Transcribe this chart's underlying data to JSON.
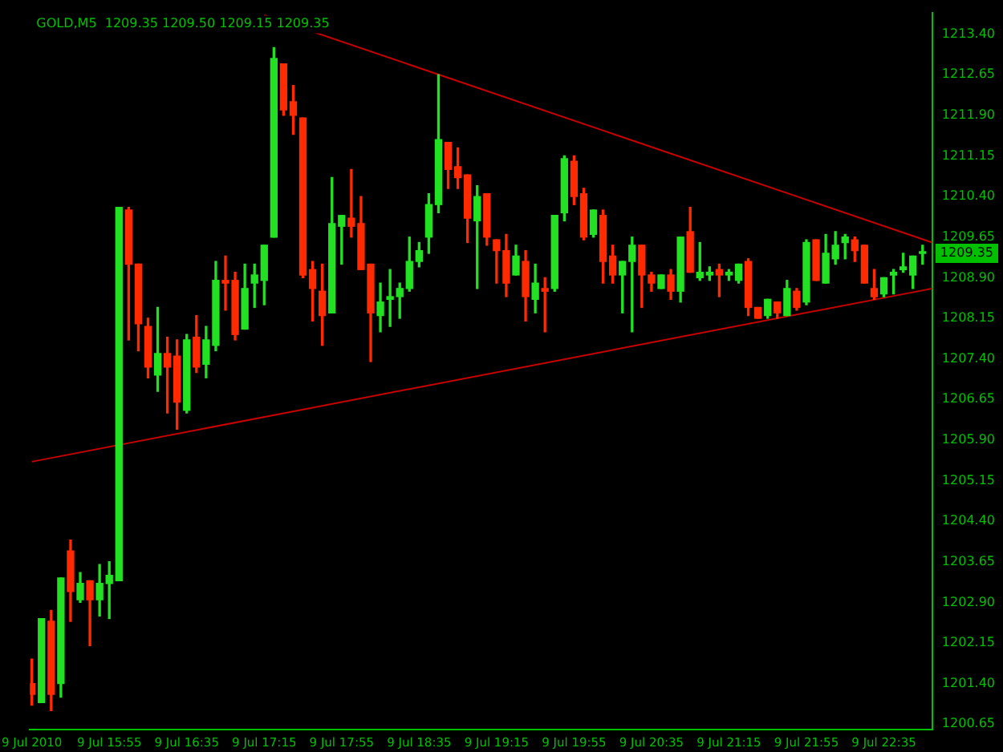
{
  "chart_data": {
    "type": "candlestick",
    "title": "GOLD,M5  1209.35 1209.50 1209.15 1209.35",
    "x": [
      "2010-07-09T15:15",
      "2010-07-09T15:20",
      "2010-07-09T15:25",
      "2010-07-09T15:30",
      "2010-07-09T15:35",
      "2010-07-09T15:40",
      "2010-07-09T15:45",
      "2010-07-09T15:50",
      "2010-07-09T15:55",
      "2010-07-09T16:00",
      "2010-07-09T16:05",
      "2010-07-09T16:10",
      "2010-07-09T16:15",
      "2010-07-09T16:20",
      "2010-07-09T16:25",
      "2010-07-09T16:30",
      "2010-07-09T16:35",
      "2010-07-09T16:40",
      "2010-07-09T16:45",
      "2010-07-09T16:50",
      "2010-07-09T16:55",
      "2010-07-09T17:00",
      "2010-07-09T17:05",
      "2010-07-09T17:10",
      "2010-07-09T17:15",
      "2010-07-09T17:20",
      "2010-07-09T17:25",
      "2010-07-09T17:30",
      "2010-07-09T17:35",
      "2010-07-09T17:40",
      "2010-07-09T17:45",
      "2010-07-09T17:50",
      "2010-07-09T17:55",
      "2010-07-09T18:00",
      "2010-07-09T18:05",
      "2010-07-09T18:10",
      "2010-07-09T18:15",
      "2010-07-09T18:20",
      "2010-07-09T18:25",
      "2010-07-09T18:30",
      "2010-07-09T18:35",
      "2010-07-09T18:40",
      "2010-07-09T18:45",
      "2010-07-09T18:50",
      "2010-07-09T18:55",
      "2010-07-09T19:00",
      "2010-07-09T19:05",
      "2010-07-09T19:10",
      "2010-07-09T19:15",
      "2010-07-09T19:20",
      "2010-07-09T19:25",
      "2010-07-09T19:30",
      "2010-07-09T19:35",
      "2010-07-09T19:40",
      "2010-07-09T19:45",
      "2010-07-09T19:50",
      "2010-07-09T19:55",
      "2010-07-09T20:00",
      "2010-07-09T20:05",
      "2010-07-09T20:10",
      "2010-07-09T20:15",
      "2010-07-09T20:20",
      "2010-07-09T20:25",
      "2010-07-09T20:30",
      "2010-07-09T20:35",
      "2010-07-09T20:40",
      "2010-07-09T20:45",
      "2010-07-09T20:50",
      "2010-07-09T20:55",
      "2010-07-09T21:00",
      "2010-07-09T21:05",
      "2010-07-09T21:10",
      "2010-07-09T21:15",
      "2010-07-09T21:20",
      "2010-07-09T21:25",
      "2010-07-09T21:30",
      "2010-07-09T21:35",
      "2010-07-09T21:40",
      "2010-07-09T21:45",
      "2010-07-09T21:50",
      "2010-07-09T21:55",
      "2010-07-09T22:00",
      "2010-07-09T22:05",
      "2010-07-09T22:10",
      "2010-07-09T22:15",
      "2010-07-09T22:20",
      "2010-07-09T22:25",
      "2010-07-09T22:30",
      "2010-07-09T22:35",
      "2010-07-09T22:40",
      "2010-07-09T22:45",
      "2010-07-09T22:50",
      "2010-07-09T22:55"
    ],
    "ohlc": [
      [
        1201.4,
        1201.85,
        1201.0,
        1201.2
      ],
      [
        1201.05,
        1202.6,
        1201.05,
        1202.6
      ],
      [
        1202.55,
        1202.75,
        1200.9,
        1201.2
      ],
      [
        1201.4,
        1203.35,
        1201.15,
        1203.35
      ],
      [
        1203.85,
        1204.05,
        1202.55,
        1203.1
      ],
      [
        1202.95,
        1203.45,
        1202.9,
        1203.25
      ],
      [
        1203.3,
        1203.3,
        1202.1,
        1202.95
      ],
      [
        1202.95,
        1203.6,
        1202.65,
        1203.25
      ],
      [
        1203.25,
        1203.65,
        1202.6,
        1203.4
      ],
      [
        1203.3,
        1210.2,
        1203.3,
        1210.2
      ],
      [
        1210.15,
        1210.2,
        1207.75,
        1209.15
      ],
      [
        1209.15,
        1209.15,
        1207.55,
        1208.05
      ],
      [
        1208.0,
        1208.15,
        1207.05,
        1207.25
      ],
      [
        1207.1,
        1208.35,
        1206.8,
        1207.5
      ],
      [
        1207.5,
        1207.8,
        1206.4,
        1207.25
      ],
      [
        1207.45,
        1207.75,
        1206.1,
        1206.6
      ],
      [
        1206.45,
        1207.85,
        1206.4,
        1207.75
      ],
      [
        1207.8,
        1208.2,
        1207.15,
        1207.25
      ],
      [
        1207.3,
        1208.0,
        1207.05,
        1207.75
      ],
      [
        1207.65,
        1209.2,
        1207.55,
        1208.85
      ],
      [
        1208.85,
        1209.3,
        1208.3,
        1208.8
      ],
      [
        1208.85,
        1209.0,
        1207.75,
        1207.85
      ],
      [
        1207.95,
        1209.15,
        1207.95,
        1208.7
      ],
      [
        1208.8,
        1209.15,
        1208.35,
        1208.95
      ],
      [
        1208.85,
        1209.5,
        1208.4,
        1209.5
      ],
      [
        1209.65,
        1213.15,
        1209.65,
        1212.95
      ],
      [
        1212.85,
        1212.85,
        1211.9,
        1212.0
      ],
      [
        1212.15,
        1212.45,
        1211.55,
        1211.9
      ],
      [
        1211.85,
        1211.85,
        1208.9,
        1208.95
      ],
      [
        1209.05,
        1209.2,
        1208.1,
        1208.7
      ],
      [
        1208.65,
        1209.15,
        1207.65,
        1208.2
      ],
      [
        1208.25,
        1210.75,
        1208.25,
        1209.9
      ],
      [
        1209.85,
        1210.05,
        1209.15,
        1210.05
      ],
      [
        1210.0,
        1210.9,
        1209.65,
        1209.85
      ],
      [
        1209.9,
        1210.4,
        1209.05,
        1209.05
      ],
      [
        1209.15,
        1209.15,
        1207.35,
        1208.25
      ],
      [
        1208.2,
        1208.8,
        1207.9,
        1208.45
      ],
      [
        1208.5,
        1209.05,
        1208.0,
        1208.55
      ],
      [
        1208.55,
        1208.8,
        1208.15,
        1208.7
      ],
      [
        1208.7,
        1209.65,
        1208.65,
        1209.2
      ],
      [
        1209.2,
        1209.55,
        1209.1,
        1209.4
      ],
      [
        1209.65,
        1210.45,
        1209.35,
        1210.25
      ],
      [
        1210.25,
        1212.65,
        1210.1,
        1211.45
      ],
      [
        1211.4,
        1211.4,
        1210.55,
        1210.9
      ],
      [
        1210.95,
        1211.3,
        1210.55,
        1210.75
      ],
      [
        1210.8,
        1210.8,
        1209.55,
        1210.0
      ],
      [
        1209.95,
        1210.6,
        1208.7,
        1210.4
      ],
      [
        1210.45,
        1210.45,
        1209.5,
        1209.65
      ],
      [
        1209.6,
        1209.6,
        1208.8,
        1209.4
      ],
      [
        1209.4,
        1209.7,
        1208.55,
        1208.8
      ],
      [
        1208.95,
        1209.5,
        1208.95,
        1209.3
      ],
      [
        1209.2,
        1209.4,
        1208.1,
        1208.55
      ],
      [
        1208.5,
        1209.15,
        1208.25,
        1208.8
      ],
      [
        1208.7,
        1208.9,
        1207.9,
        1208.65
      ],
      [
        1208.7,
        1210.05,
        1208.65,
        1210.05
      ],
      [
        1210.1,
        1211.15,
        1209.95,
        1211.1
      ],
      [
        1211.05,
        1211.15,
        1210.25,
        1210.4
      ],
      [
        1210.45,
        1210.55,
        1209.6,
        1209.65
      ],
      [
        1209.7,
        1210.15,
        1209.65,
        1210.15
      ],
      [
        1210.05,
        1210.15,
        1208.8,
        1209.2
      ],
      [
        1209.3,
        1209.5,
        1208.8,
        1208.95
      ],
      [
        1208.95,
        1209.2,
        1208.25,
        1209.2
      ],
      [
        1209.2,
        1209.65,
        1207.9,
        1209.5
      ],
      [
        1209.5,
        1209.5,
        1208.35,
        1208.95
      ],
      [
        1208.95,
        1209.0,
        1208.65,
        1208.8
      ],
      [
        1208.7,
        1208.95,
        1208.7,
        1208.95
      ],
      [
        1208.95,
        1209.05,
        1208.5,
        1208.65
      ],
      [
        1208.65,
        1209.65,
        1208.45,
        1209.65
      ],
      [
        1209.75,
        1210.2,
        1209.0,
        1209.0
      ],
      [
        1208.9,
        1209.55,
        1208.85,
        1209.0
      ],
      [
        1208.95,
        1209.1,
        1208.85,
        1209.0
      ],
      [
        1209.05,
        1209.15,
        1208.55,
        1208.95
      ],
      [
        1208.95,
        1209.05,
        1208.85,
        1209.0
      ],
      [
        1208.85,
        1209.15,
        1208.8,
        1209.15
      ],
      [
        1209.2,
        1209.25,
        1208.2,
        1208.35
      ],
      [
        1208.35,
        1208.35,
        1208.15,
        1208.15
      ],
      [
        1208.2,
        1208.5,
        1208.15,
        1208.5
      ],
      [
        1208.45,
        1208.45,
        1208.15,
        1208.25
      ],
      [
        1208.2,
        1208.85,
        1208.2,
        1208.7
      ],
      [
        1208.65,
        1208.7,
        1208.3,
        1208.35
      ],
      [
        1208.45,
        1209.6,
        1208.4,
        1209.55
      ],
      [
        1209.6,
        1209.6,
        1208.85,
        1208.85
      ],
      [
        1208.8,
        1209.7,
        1208.8,
        1209.35
      ],
      [
        1209.25,
        1209.75,
        1209.15,
        1209.5
      ],
      [
        1209.55,
        1209.7,
        1209.25,
        1209.65
      ],
      [
        1209.6,
        1209.65,
        1209.2,
        1209.4
      ],
      [
        1209.5,
        1209.5,
        1208.8,
        1208.8
      ],
      [
        1208.7,
        1209.05,
        1208.5,
        1208.55
      ],
      [
        1208.6,
        1208.9,
        1208.55,
        1208.9
      ],
      [
        1208.95,
        1209.05,
        1208.6,
        1209.0
      ],
      [
        1209.05,
        1209.35,
        1209.0,
        1209.1
      ],
      [
        1208.95,
        1209.3,
        1208.7,
        1209.3
      ],
      [
        1209.35,
        1209.5,
        1209.15,
        1209.35
      ]
    ],
    "colors": [
      "#ff2a00",
      "#22e022",
      "#ff2a00",
      "#22e022",
      "#ff2a00",
      "#22e022",
      "#ff2a00",
      "#22e022",
      "#22e022",
      "#22e022",
      "#ff2a00",
      "#ff2a00",
      "#ff2a00",
      "#22e022",
      "#ff2a00",
      "#ff2a00",
      "#22e022",
      "#ff2a00",
      "#22e022",
      "#22e022",
      "#ff2a00",
      "#ff2a00",
      "#22e022",
      "#22e022",
      "#22e022",
      "#22e022",
      "#ff2a00",
      "#ff2a00",
      "#ff2a00",
      "#ff2a00",
      "#ff2a00",
      "#22e022",
      "#22e022",
      "#ff2a00",
      "#ff2a00",
      "#ff2a00",
      "#22e022",
      "#22e022",
      "#22e022",
      "#22e022",
      "#22e022",
      "#22e022",
      "#22e022",
      "#ff2a00",
      "#ff2a00",
      "#ff2a00",
      "#22e022",
      "#ff2a00",
      "#ff2a00",
      "#ff2a00",
      "#22e022",
      "#ff2a00",
      "#22e022",
      "#ff2a00",
      "#22e022",
      "#22e022",
      "#ff2a00",
      "#ff2a00",
      "#22e022",
      "#ff2a00",
      "#ff2a00",
      "#22e022",
      "#22e022",
      "#ff2a00",
      "#ff2a00",
      "#22e022",
      "#ff2a00",
      "#22e022",
      "#ff2a00",
      "#22e022",
      "#22e022",
      "#ff2a00",
      "#22e022",
      "#22e022",
      "#ff2a00",
      "#ff2a00",
      "#22e022",
      "#ff2a00",
      "#22e022",
      "#ff2a00",
      "#22e022",
      "#ff2a00",
      "#22e022",
      "#22e022",
      "#22e022",
      "#ff2a00",
      "#ff2a00",
      "#ff2a00",
      "#22e022",
      "#22e022",
      "#22e022",
      "#22e022",
      "#22e022"
    ],
    "series": [
      {
        "type": "line",
        "color": "#c80000",
        "x": [
          "2010-07-09T17:15",
          "2010-07-09T23:00"
        ],
        "values": [
          1213.75,
          1209.55
        ]
      },
      {
        "type": "line",
        "color": "#c80000",
        "x": [
          "2010-07-09T15:15",
          "2010-07-09T23:00"
        ],
        "values": [
          1205.5,
          1208.7
        ]
      }
    ],
    "xlim": [
      "2010-07-09T15:14",
      "2010-07-09T23:00"
    ],
    "xticks": [
      {
        "value": "2010-07-09T15:15",
        "label": "9 Jul 2010"
      },
      {
        "value": "2010-07-09T15:55",
        "label": "9 Jul 15:55"
      },
      {
        "value": "2010-07-09T16:35",
        "label": "9 Jul 16:35"
      },
      {
        "value": "2010-07-09T17:15",
        "label": "9 Jul 17:15"
      },
      {
        "value": "2010-07-09T17:55",
        "label": "9 Jul 17:55"
      },
      {
        "value": "2010-07-09T18:35",
        "label": "9 Jul 18:35"
      },
      {
        "value": "2010-07-09T19:15",
        "label": "9 Jul 19:15"
      },
      {
        "value": "2010-07-09T19:55",
        "label": "9 Jul 19:55"
      },
      {
        "value": "2010-07-09T20:35",
        "label": "9 Jul 20:35"
      },
      {
        "value": "2010-07-09T21:15",
        "label": "9 Jul 21:15"
      },
      {
        "value": "2010-07-09T21:55",
        "label": "9 Jul 21:55"
      },
      {
        "value": "2010-07-09T22:35",
        "label": "9 Jul 22:35"
      }
    ],
    "ylim": [
      1200.55,
      1213.8
    ],
    "yticks": [
      {
        "value": 1200.65,
        "label": "1200.65"
      },
      {
        "value": 1201.4,
        "label": "1201.40"
      },
      {
        "value": 1202.15,
        "label": "1202.15"
      },
      {
        "value": 1202.9,
        "label": "1202.90"
      },
      {
        "value": 1203.65,
        "label": "1203.65"
      },
      {
        "value": 1204.4,
        "label": "1204.40"
      },
      {
        "value": 1205.15,
        "label": "1205.15"
      },
      {
        "value": 1205.9,
        "label": "1205.90"
      },
      {
        "value": 1206.65,
        "label": "1206.65"
      },
      {
        "value": 1207.4,
        "label": "1207.40"
      },
      {
        "value": 1208.15,
        "label": "1208.15"
      },
      {
        "value": 1208.9,
        "label": "1208.90"
      },
      {
        "value": 1209.65,
        "label": "1209.65"
      },
      {
        "value": 1210.4,
        "label": "1210.40"
      },
      {
        "value": 1211.15,
        "label": "1211.15"
      },
      {
        "value": 1211.9,
        "label": "1211.90"
      },
      {
        "value": 1212.65,
        "label": "1212.65"
      },
      {
        "value": 1213.4,
        "label": "1213.40"
      }
    ],
    "annotations": [
      {
        "text": "1209.35",
        "y": 1209.35
      }
    ],
    "legend": false
  }
}
